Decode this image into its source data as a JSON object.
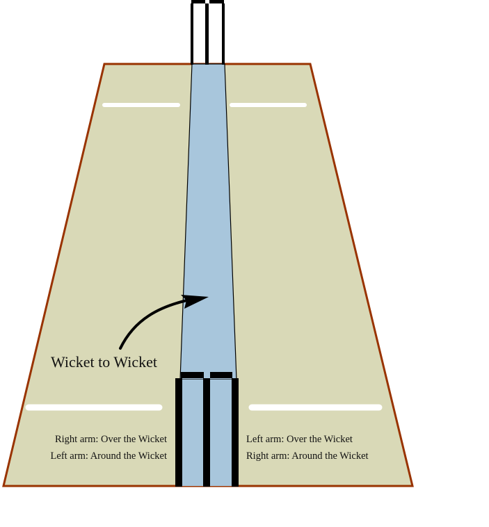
{
  "diagram": {
    "center_label": "Wicket to Wicket",
    "left_side": {
      "line1": "Right arm: Over the Wicket",
      "line2": "Left arm: Around the Wicket"
    },
    "right_side": {
      "line1": "Left arm: Over the Wicket",
      "line2": "Right arm: Around the Wicket"
    }
  },
  "colors": {
    "pitch_fill": "#d9d9b7",
    "pitch_border": "#993300",
    "corridor_fill": "#a8c6dc",
    "crease": "#ffffff",
    "stumps": "#000000"
  }
}
